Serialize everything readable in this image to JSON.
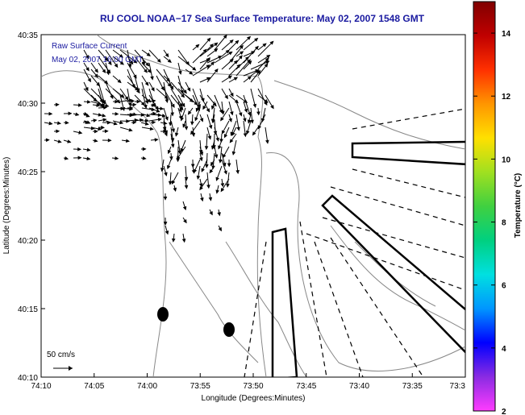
{
  "title": "RU COOL  NOAA−17  Sea Surface Temperature:  May 02, 2007 1548 GMT",
  "legend": {
    "line1": "Raw Surface Current",
    "line2": "May 02, 2007 16:00 GMT"
  },
  "scale_label": "50 cm/s",
  "xlabel": "Longitude (Degrees:Minutes)",
  "ylabel": "Latitude (Degrees:Minutes)",
  "x_ticks": [
    "74:10",
    "74:05",
    "74:00",
    "73:55",
    "73:50",
    "73:45",
    "73:40",
    "73:35",
    "73:3"
  ],
  "y_ticks": [
    "40:35",
    "40:30",
    "40:25",
    "40:20",
    "40:15",
    "40:10"
  ],
  "colorbar": {
    "label": "Temperature (°C)",
    "ticks": [
      "14",
      "12",
      "10",
      "8",
      "6",
      "4",
      "2"
    ],
    "range": [
      2,
      15
    ],
    "colors": [
      "#ff3cff",
      "#8a2be2",
      "#0000ff",
      "#0096ff",
      "#00e0e0",
      "#00d080",
      "#40d040",
      "#a0e020",
      "#ffe000",
      "#ff9600",
      "#ff3000",
      "#c00000",
      "#800000"
    ]
  },
  "colors": {
    "title": "#1a1aa0",
    "contour": "#888888",
    "vector": "#000000"
  }
}
